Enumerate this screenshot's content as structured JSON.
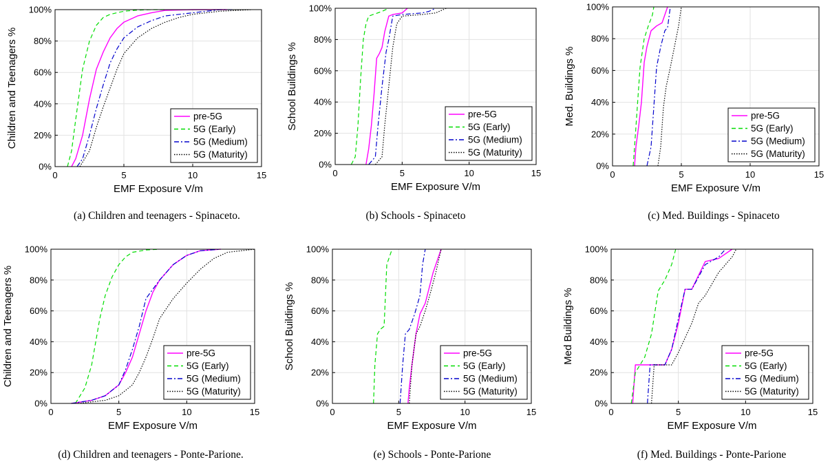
{
  "styles": {
    "colors": {
      "pre-5G": "#ff00ff",
      "5G (Early)": "#00dd00",
      "5G (Medium)": "#0000cc",
      "5G (Maturity)": "#000000"
    },
    "dash": {
      "pre-5G": "",
      "5G (Early)": "6,4",
      "5G (Medium)": "7,3,2,3",
      "5G (Maturity)": "1.5,2"
    },
    "grid": "#e2e2e2",
    "axis": "#000000"
  },
  "chart_data": [
    {
      "type": "line",
      "caption": "(a) Children and teenagers - Spinaceto.",
      "xlabel": "EMF Exposure V/m",
      "ylabel": "Children and Teenagers %",
      "xlim": [
        0,
        15
      ],
      "ylim": [
        0,
        100
      ],
      "xticks": [
        "0",
        "5",
        "10",
        "15"
      ],
      "yticks": [
        "0%",
        "20%",
        "40%",
        "60%",
        "80%",
        "100%"
      ],
      "grid": true,
      "legend": "bottom-right",
      "series": [
        {
          "name": "pre-5G",
          "x": [
            1.2,
            1.5,
            2.0,
            2.5,
            3.0,
            3.5,
            4.0,
            4.5,
            5.0,
            6.0,
            7.0,
            8.0,
            10.0,
            12.5
          ],
          "y": [
            0,
            5,
            20,
            43,
            62,
            73,
            82,
            88,
            92,
            96,
            98,
            99.5,
            100,
            100
          ]
        },
        {
          "name": "5G (Early)",
          "x": [
            0.9,
            1.2,
            1.5,
            2.0,
            2.5,
            3.0,
            3.5,
            4.0,
            5.0,
            6.0,
            7.0,
            8.0
          ],
          "y": [
            0,
            10,
            30,
            62,
            80,
            90,
            95,
            97,
            99,
            99.7,
            100,
            100
          ]
        },
        {
          "name": "5G (Medium)",
          "x": [
            1.6,
            2.0,
            2.5,
            3.0,
            3.5,
            4.0,
            4.5,
            5.0,
            6.0,
            7.0,
            8.0,
            10.0,
            12.0,
            13.0
          ],
          "y": [
            0,
            5,
            20,
            37,
            52,
            66,
            75,
            82,
            89,
            93,
            96,
            98,
            100,
            100
          ]
        },
        {
          "name": "5G (Maturity)",
          "x": [
            1.8,
            2.5,
            3.0,
            3.5,
            4.0,
            4.5,
            5.0,
            6.0,
            7.0,
            8.0,
            9.0,
            10.0,
            12.0,
            14.3
          ],
          "y": [
            0,
            10,
            25,
            38,
            50,
            62,
            72,
            82,
            88,
            92,
            95,
            97,
            99,
            100
          ]
        }
      ]
    },
    {
      "type": "line",
      "caption": "(b) Schools - Spinaceto",
      "xlabel": "EMF Exposure V/m",
      "ylabel": "School Buildings %",
      "xlim": [
        0,
        15
      ],
      "ylim": [
        0,
        100
      ],
      "xticks": [
        "0",
        "5",
        "10",
        "15"
      ],
      "yticks": [
        "0%",
        "20%",
        "40%",
        "60%",
        "80%",
        "100%"
      ],
      "grid": true,
      "legend": "bottom-right",
      "series": [
        {
          "name": "pre-5G",
          "x": [
            2.3,
            2.5,
            2.7,
            2.9,
            3.1,
            3.3,
            3.5,
            3.7,
            4.0,
            4.3,
            5.0,
            5.4
          ],
          "y": [
            0,
            10,
            25,
            45,
            68,
            71,
            75,
            85,
            95,
            96,
            97,
            100
          ]
        },
        {
          "name": "5G (Early)",
          "x": [
            1.2,
            1.5,
            1.7,
            1.9,
            2.1,
            2.3,
            2.5,
            3.5,
            4.0
          ],
          "y": [
            0,
            5,
            25,
            55,
            80,
            90,
            95,
            98,
            100
          ]
        },
        {
          "name": "5G (Medium)",
          "x": [
            2.5,
            3.0,
            3.2,
            3.5,
            3.8,
            4.0,
            4.3,
            5.0,
            6.5,
            7.0,
            7.5
          ],
          "y": [
            0,
            5,
            25,
            50,
            72,
            80,
            95,
            96,
            97,
            98,
            100
          ]
        },
        {
          "name": "5G (Maturity)",
          "x": [
            3.0,
            3.5,
            3.7,
            4.0,
            4.3,
            4.6,
            5.0,
            6.5,
            7.5,
            8.3
          ],
          "y": [
            0,
            5,
            25,
            50,
            75,
            90,
            95,
            96,
            97,
            100
          ]
        }
      ]
    },
    {
      "type": "line",
      "caption": "(c) Med. Buildings - Spinaceto",
      "xlabel": "EMF Exposure V/m",
      "ylabel": "Med. Buildings %",
      "xlim": [
        0,
        15
      ],
      "ylim": [
        0,
        100
      ],
      "xticks": [
        "0",
        "5",
        "10",
        "15"
      ],
      "yticks": [
        "0%",
        "20%",
        "40%",
        "60%",
        "80%",
        "100%"
      ],
      "grid": true,
      "legend": "bottom-right",
      "series": [
        {
          "name": "pre-5G",
          "x": [
            1.6,
            1.7,
            1.9,
            2.1,
            2.3,
            2.5,
            2.8,
            3.2,
            3.6,
            4.0
          ],
          "y": [
            0,
            12,
            25,
            40,
            65,
            75,
            85,
            88,
            90,
            100
          ]
        },
        {
          "name": "5G (Early)",
          "x": [
            1.5,
            1.6,
            1.8,
            2.0,
            2.3,
            2.6,
            2.9,
            3.0
          ],
          "y": [
            0,
            12,
            37,
            62,
            80,
            88,
            95,
            100
          ]
        },
        {
          "name": "5G (Medium)",
          "x": [
            2.5,
            2.8,
            3.0,
            3.2,
            3.5,
            3.8,
            4.0,
            4.2
          ],
          "y": [
            0,
            12,
            37,
            62,
            75,
            85,
            87,
            100
          ]
        },
        {
          "name": "5G (Maturity)",
          "x": [
            3.3,
            3.5,
            3.7,
            3.9,
            4.2,
            4.5,
            4.8,
            5.0
          ],
          "y": [
            0,
            12,
            37,
            50,
            62,
            75,
            88,
            100
          ]
        }
      ]
    },
    {
      "type": "line",
      "caption": "(d) Children and teenagers - Ponte-Parione.",
      "xlabel": "EMF Exposure V/m",
      "ylabel": "Children and Teenagers %",
      "xlim": [
        0,
        15
      ],
      "ylim": [
        0,
        100
      ],
      "xticks": [
        "0",
        "5",
        "10",
        "15"
      ],
      "yticks": [
        "0%",
        "20%",
        "40%",
        "60%",
        "80%",
        "100%"
      ],
      "grid": true,
      "legend": "bottom-right",
      "series": [
        {
          "name": "pre-5G",
          "x": [
            1.5,
            3.0,
            4.0,
            5.0,
            5.5,
            6.0,
            6.5,
            7.0,
            7.5,
            8.0,
            9.0,
            10.0,
            11.0,
            12.5
          ],
          "y": [
            0,
            2,
            5,
            12,
            20,
            30,
            45,
            60,
            72,
            80,
            90,
            96,
            99,
            100
          ]
        },
        {
          "name": "5G (Early)",
          "x": [
            1.8,
            2.5,
            3.0,
            3.3,
            3.6,
            4.0,
            4.5,
            5.0,
            5.5,
            6.0,
            7.0,
            8.0
          ],
          "y": [
            0,
            10,
            25,
            40,
            55,
            70,
            82,
            90,
            95,
            98,
            99.5,
            100
          ]
        },
        {
          "name": "5G (Medium)",
          "x": [
            1.5,
            3.0,
            4.0,
            5.0,
            5.5,
            6.0,
            6.5,
            7.0,
            8.0,
            9.0,
            10.0,
            11.0,
            12.5
          ],
          "y": [
            0,
            2,
            5,
            12,
            22,
            35,
            50,
            68,
            80,
            90,
            96,
            99,
            100
          ]
        },
        {
          "name": "5G (Maturity)",
          "x": [
            2.0,
            4.0,
            5.0,
            6.0,
            6.5,
            7.0,
            7.5,
            8.0,
            9.0,
            10.0,
            11.0,
            12.0,
            13.0,
            15.0
          ],
          "y": [
            0,
            2,
            5,
            12,
            20,
            30,
            42,
            55,
            68,
            78,
            87,
            94,
            98,
            100
          ]
        }
      ]
    },
    {
      "type": "line",
      "caption": "(e) Schools - Ponte-Parione",
      "xlabel": "EMF Exposure V/m",
      "ylabel": "School Buildings %",
      "xlim": [
        0,
        15
      ],
      "ylim": [
        0,
        100
      ],
      "xticks": [
        "0",
        "5",
        "10",
        "15"
      ],
      "yticks": [
        "0%",
        "20%",
        "40%",
        "60%",
        "80%",
        "100%"
      ],
      "grid": true,
      "legend": "bottom-right",
      "series": [
        {
          "name": "pre-5G",
          "x": [
            5.7,
            5.8,
            6.0,
            6.3,
            6.6,
            7.0,
            7.3,
            7.6,
            8.0,
            8.2
          ],
          "y": [
            0,
            10,
            25,
            45,
            58,
            65,
            75,
            85,
            95,
            100
          ]
        },
        {
          "name": "5G (Early)",
          "x": [
            3.1,
            3.2,
            3.4,
            3.6,
            3.9,
            4.1,
            4.3,
            4.5
          ],
          "y": [
            0,
            25,
            45,
            48,
            50,
            90,
            95,
            100
          ]
        },
        {
          "name": "5G (Medium)",
          "x": [
            5.1,
            5.3,
            5.5,
            5.8,
            6.2,
            6.6,
            6.8,
            7.0
          ],
          "y": [
            0,
            25,
            45,
            48,
            58,
            70,
            90,
            100
          ]
        },
        {
          "name": "5G (Maturity)",
          "x": [
            5.8,
            6.0,
            6.3,
            6.6,
            7.0,
            7.4,
            7.8,
            8.2
          ],
          "y": [
            0,
            25,
            45,
            50,
            60,
            72,
            85,
            100
          ]
        }
      ]
    },
    {
      "type": "line",
      "caption": "(f) Med. Buildings - Ponte-Parione",
      "xlabel": "EMF Exposure V/m",
      "ylabel": "Med Buildings %",
      "xlim": [
        0,
        15
      ],
      "ylim": [
        0,
        100
      ],
      "xticks": [
        "0",
        "5",
        "10",
        "15"
      ],
      "yticks": [
        "0%",
        "20%",
        "40%",
        "60%",
        "80%",
        "100%"
      ],
      "grid": true,
      "legend": "bottom-right",
      "series": [
        {
          "name": "pre-5G",
          "x": [
            1.6,
            1.8,
            4.0,
            4.5,
            5.0,
            5.5,
            6.0,
            7.0,
            8.0,
            9.0
          ],
          "y": [
            0,
            25,
            25,
            35,
            52,
            74,
            74,
            92,
            94,
            100
          ]
        },
        {
          "name": "5G (Early)",
          "x": [
            1.5,
            1.8,
            2.5,
            3.0,
            3.5,
            4.0,
            4.5,
            4.8
          ],
          "y": [
            0,
            20,
            30,
            45,
            73,
            80,
            90,
            100
          ]
        },
        {
          "name": "5G (Medium)",
          "x": [
            2.7,
            2.9,
            4.0,
            4.5,
            5.0,
            5.5,
            6.0,
            7.0,
            8.0,
            8.5
          ],
          "y": [
            0,
            25,
            25,
            35,
            55,
            74,
            74,
            90,
            95,
            100
          ]
        },
        {
          "name": "5G (Maturity)",
          "x": [
            3.0,
            3.2,
            4.5,
            5.0,
            6.0,
            6.5,
            7.0,
            8.0,
            9.0,
            9.3
          ],
          "y": [
            0,
            25,
            25,
            33,
            52,
            65,
            70,
            85,
            95,
            100
          ]
        }
      ]
    }
  ]
}
